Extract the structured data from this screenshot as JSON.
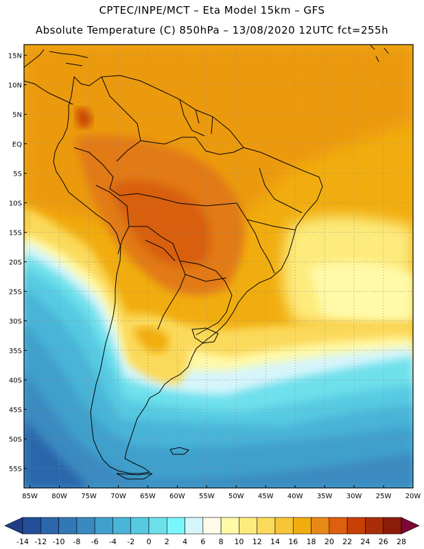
{
  "header": {
    "line1": "CPTEC/INPE/MCT –  Eta Model 15km – GFS",
    "line2": "Absolute Temperature (C) 850hPa – 13/08/2020 12UTC fct=255h"
  },
  "axes": {
    "lat_labels": [
      "15N",
      "10N",
      "5N",
      "EQ",
      "5S",
      "10S",
      "15S",
      "20S",
      "25S",
      "30S",
      "35S",
      "40S",
      "45S",
      "50S",
      "55S"
    ],
    "lat_values": [
      15,
      10,
      5,
      0,
      -5,
      -10,
      -15,
      -20,
      -25,
      -30,
      -35,
      -40,
      -45,
      -50,
      -55
    ],
    "lon_labels": [
      "85W",
      "80W",
      "75W",
      "70W",
      "65W",
      "60W",
      "55W",
      "50W",
      "45W",
      "40W",
      "35W",
      "30W",
      "25W",
      "20W"
    ],
    "lon_values": [
      -85,
      -80,
      -75,
      -70,
      -65,
      -60,
      -55,
      -50,
      -45,
      -40,
      -35,
      -30,
      -25,
      -20
    ],
    "lon_range": [
      -86,
      -20
    ],
    "lat_range": [
      -58.3,
      16.8
    ],
    "grid": "dotted"
  },
  "colorbar": {
    "labels": [
      "-14",
      "-12",
      "-10",
      "-8",
      "-6",
      "-4",
      "-2",
      "0",
      "2",
      "4",
      "6",
      "8",
      "10",
      "12",
      "14",
      "16",
      "18",
      "20",
      "22",
      "24",
      "26",
      "28"
    ],
    "colors": [
      "#1f3d87",
      "#244f98",
      "#2c66ab",
      "#3378b6",
      "#3a8ac1",
      "#41a0cc",
      "#49b4d7",
      "#57cae2",
      "#6ee0ec",
      "#7af7fb",
      "#d6f5fb",
      "#fffbe8",
      "#fff9a8",
      "#fdeb7d",
      "#fbd95a",
      "#f6c538",
      "#f1ad0f",
      "#e88817",
      "#dd5f0f",
      "#c84006",
      "#a92e07",
      "#8a1c09",
      "#7c0836"
    ]
  },
  "colors": {
    "land_outline": "#000000",
    "grid": "#8a8a8a"
  }
}
